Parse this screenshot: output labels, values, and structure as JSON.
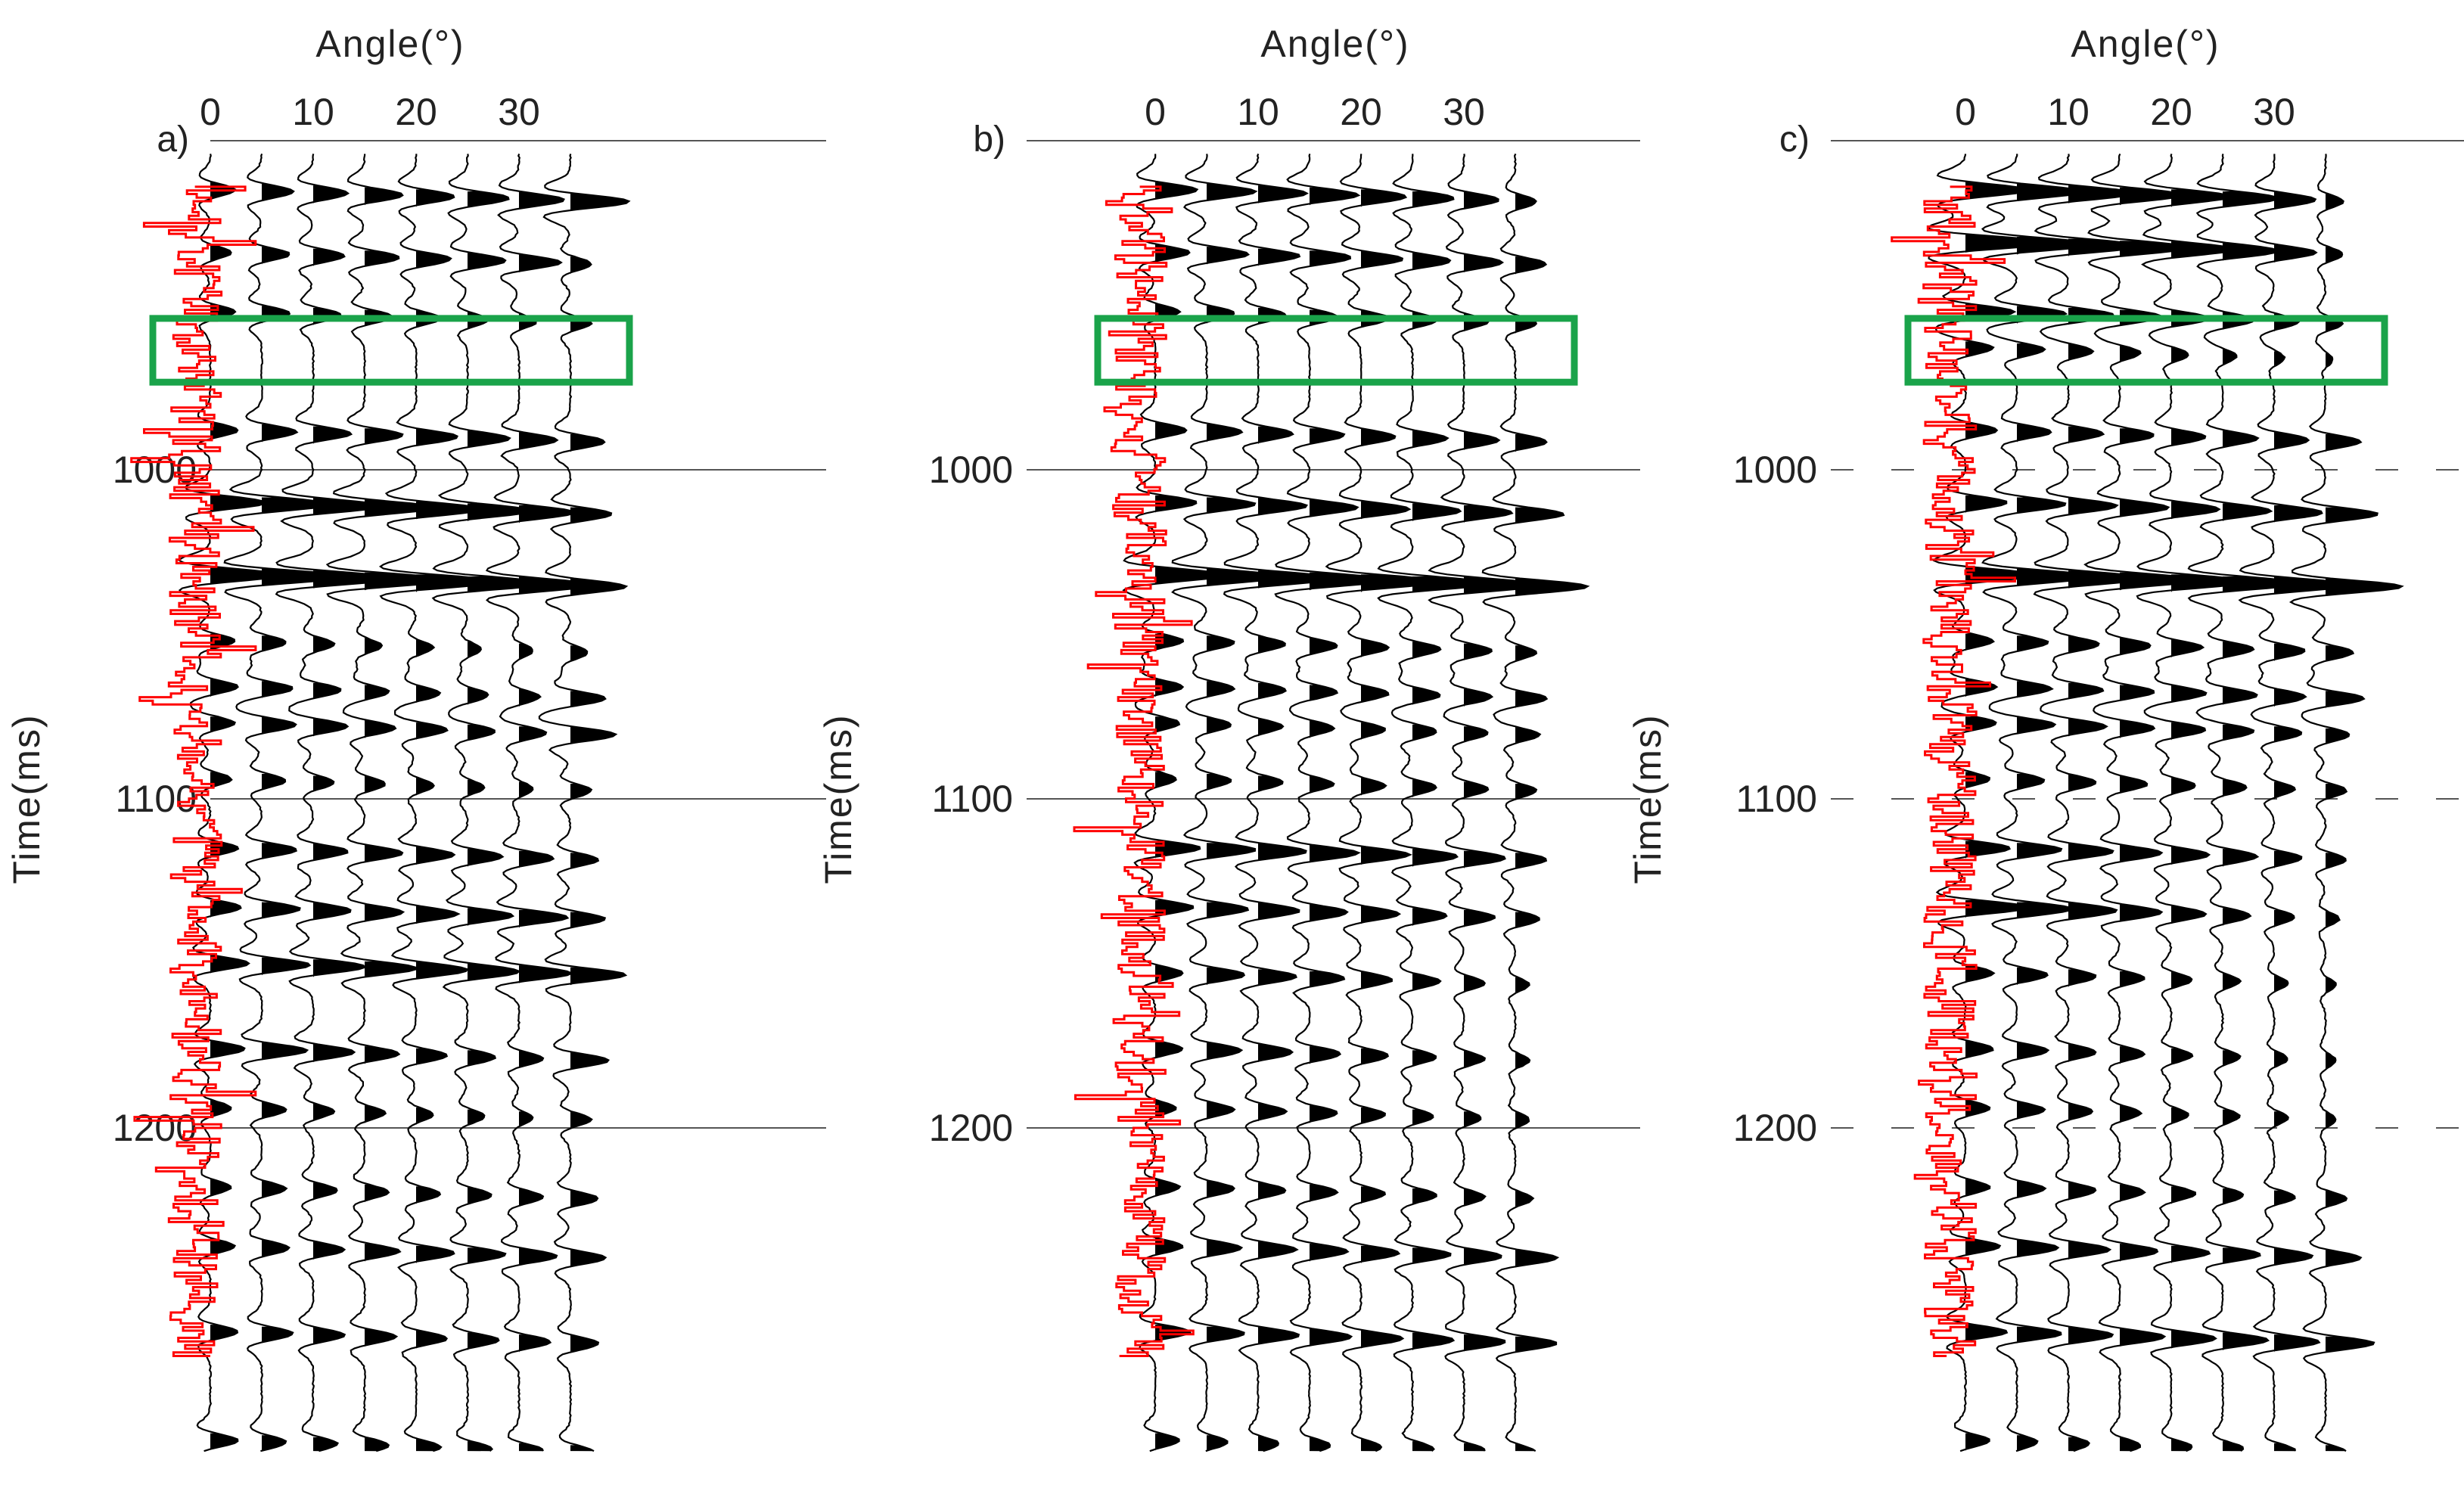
{
  "figure": {
    "colors": {
      "trace": "#000000",
      "fill": "#000000",
      "log": "#ff0000",
      "box": "#1aa34a",
      "grid": "#555555"
    }
  },
  "chart_data": [
    {
      "type": "seismic-wiggle-gather",
      "panel_label": "a)",
      "title": "Angle(°)",
      "xlabel": "Angle(°)",
      "ylabel": "Time(ms)",
      "x_ticks": [
        "0",
        "10",
        "20",
        "30"
      ],
      "y_ticks": [
        "1000",
        "1100",
        "1200"
      ],
      "y_tick_values": [
        1000,
        1100,
        1200
      ],
      "ylim": [
        900,
        1300
      ],
      "trace_angles": [
        0,
        5,
        10,
        15,
        20,
        25,
        30,
        35
      ],
      "gridline_style": "solid",
      "highlight_box": {
        "time_range": [
          954,
          972
        ],
        "angle_range": [
          -5,
          40
        ]
      },
      "events": [
        {
          "t": 915,
          "amp": [
            0.35,
            0.45,
            0.5,
            0.55,
            0.55,
            0.6,
            0.65,
            0.85
          ]
        },
        {
          "t": 934,
          "amp": [
            0.3,
            0.4,
            0.45,
            0.5,
            0.5,
            0.55,
            0.6,
            0.3
          ]
        },
        {
          "t": 952,
          "amp": [
            0.35,
            0.4,
            0.4,
            0.4,
            0.35,
            0.3,
            0.25,
            0.3
          ]
        },
        {
          "t": 988,
          "amp": [
            0.4,
            0.5,
            0.55,
            0.55,
            0.6,
            0.6,
            0.55,
            0.5
          ]
        },
        {
          "t": 1010,
          "amp": [
            0.8,
            1.0,
            1.0,
            1.0,
            0.95,
            0.9,
            0.8,
            0.6
          ]
        },
        {
          "t": 1032,
          "amp": [
            1.0,
            1.2,
            1.2,
            1.2,
            1.15,
            1.1,
            1.05,
            0.8
          ]
        },
        {
          "t": 1052,
          "amp": [
            0.35,
            0.35,
            0.3,
            0.25,
            0.25,
            0.2,
            0.2,
            0.25
          ]
        },
        {
          "t": 1066,
          "amp": [
            0.4,
            0.45,
            0.4,
            0.35,
            0.35,
            0.3,
            0.3,
            0.5
          ]
        },
        {
          "t": 1077,
          "amp": [
            0.35,
            0.5,
            0.5,
            0.45,
            0.45,
            0.4,
            0.4,
            0.65
          ]
        },
        {
          "t": 1094,
          "amp": [
            0.3,
            0.35,
            0.3,
            0.3,
            0.25,
            0.25,
            0.2,
            0.3
          ]
        },
        {
          "t": 1115,
          "amp": [
            0.4,
            0.5,
            0.5,
            0.55,
            0.55,
            0.5,
            0.5,
            0.4
          ]
        },
        {
          "t": 1133,
          "amp": [
            0.45,
            0.55,
            0.55,
            0.55,
            0.6,
            0.65,
            0.7,
            0.5
          ]
        },
        {
          "t": 1150,
          "amp": [
            0.55,
            0.7,
            0.75,
            0.75,
            0.75,
            0.75,
            0.75,
            0.8
          ]
        },
        {
          "t": 1176,
          "amp": [
            0.5,
            0.65,
            0.6,
            0.5,
            0.45,
            0.4,
            0.35,
            0.55
          ]
        },
        {
          "t": 1194,
          "amp": [
            0.3,
            0.35,
            0.3,
            0.3,
            0.25,
            0.25,
            0.2,
            0.3
          ]
        },
        {
          "t": 1218,
          "amp": [
            0.3,
            0.35,
            0.35,
            0.35,
            0.35,
            0.35,
            0.35,
            0.4
          ]
        },
        {
          "t": 1236,
          "amp": [
            0.35,
            0.4,
            0.45,
            0.5,
            0.55,
            0.55,
            0.55,
            0.5
          ]
        },
        {
          "t": 1262,
          "amp": [
            0.4,
            0.45,
            0.45,
            0.45,
            0.45,
            0.45,
            0.45,
            0.4
          ]
        },
        {
          "t": 1295,
          "amp": [
            0.4,
            0.35,
            0.35,
            0.35,
            0.35,
            0.35,
            0.35,
            0.35
          ]
        }
      ]
    },
    {
      "type": "seismic-wiggle-gather",
      "panel_label": "b)",
      "title": "Angle(°)",
      "xlabel": "Angle(°)",
      "ylabel": "Time(ms)",
      "x_ticks": [
        "0",
        "10",
        "20",
        "30"
      ],
      "y_ticks": [
        "1000",
        "1100",
        "1200"
      ],
      "y_tick_values": [
        1000,
        1100,
        1200
      ],
      "ylim": [
        900,
        1300
      ],
      "trace_angles": [
        0,
        5,
        10,
        15,
        20,
        25,
        30,
        35
      ],
      "gridline_style": "solid",
      "highlight_box": {
        "time_range": [
          954,
          972
        ],
        "angle_range": [
          -5,
          40
        ]
      },
      "events": [
        {
          "t": 915,
          "amp": [
            0.6,
            0.7,
            0.7,
            0.7,
            0.65,
            0.6,
            0.5,
            0.3
          ]
        },
        {
          "t": 934,
          "amp": [
            0.5,
            0.6,
            0.6,
            0.6,
            0.6,
            0.55,
            0.55,
            0.45
          ]
        },
        {
          "t": 952,
          "amp": [
            0.35,
            0.4,
            0.4,
            0.4,
            0.4,
            0.35,
            0.35,
            0.3
          ]
        },
        {
          "t": 988,
          "amp": [
            0.45,
            0.5,
            0.5,
            0.5,
            0.5,
            0.5,
            0.5,
            0.45
          ]
        },
        {
          "t": 1010,
          "amp": [
            0.6,
            0.7,
            0.7,
            0.7,
            0.7,
            0.7,
            0.7,
            0.7
          ]
        },
        {
          "t": 1032,
          "amp": [
            1.0,
            1.1,
            1.1,
            1.1,
            1.1,
            1.1,
            1.1,
            1.05
          ]
        },
        {
          "t": 1052,
          "amp": [
            0.4,
            0.4,
            0.4,
            0.4,
            0.4,
            0.4,
            0.4,
            0.3
          ]
        },
        {
          "t": 1066,
          "amp": [
            0.4,
            0.4,
            0.4,
            0.4,
            0.4,
            0.4,
            0.4,
            0.45
          ]
        },
        {
          "t": 1077,
          "amp": [
            0.35,
            0.35,
            0.35,
            0.35,
            0.35,
            0.35,
            0.35,
            0.35
          ]
        },
        {
          "t": 1094,
          "amp": [
            0.3,
            0.35,
            0.35,
            0.35,
            0.35,
            0.35,
            0.35,
            0.3
          ]
        },
        {
          "t": 1115,
          "amp": [
            0.65,
            0.7,
            0.7,
            0.7,
            0.7,
            0.65,
            0.6,
            0.45
          ]
        },
        {
          "t": 1133,
          "amp": [
            0.55,
            0.6,
            0.6,
            0.55,
            0.55,
            0.5,
            0.45,
            0.35
          ]
        },
        {
          "t": 1153,
          "amp": [
            0.4,
            0.55,
            0.55,
            0.5,
            0.45,
            0.4,
            0.3,
            0.2
          ]
        },
        {
          "t": 1176,
          "amp": [
            0.4,
            0.5,
            0.5,
            0.45,
            0.4,
            0.35,
            0.3,
            0.2
          ]
        },
        {
          "t": 1194,
          "amp": [
            0.3,
            0.4,
            0.4,
            0.4,
            0.35,
            0.3,
            0.25,
            0.2
          ]
        },
        {
          "t": 1218,
          "amp": [
            0.35,
            0.4,
            0.4,
            0.4,
            0.35,
            0.35,
            0.3,
            0.25
          ]
        },
        {
          "t": 1236,
          "amp": [
            0.4,
            0.5,
            0.55,
            0.55,
            0.55,
            0.55,
            0.55,
            0.6
          ]
        },
        {
          "t": 1262,
          "amp": [
            0.5,
            0.55,
            0.6,
            0.6,
            0.6,
            0.6,
            0.6,
            0.6
          ]
        },
        {
          "t": 1295,
          "amp": [
            0.35,
            0.3,
            0.3,
            0.3,
            0.3,
            0.3,
            0.3,
            0.3
          ]
        }
      ]
    },
    {
      "type": "seismic-wiggle-gather",
      "panel_label": "c)",
      "title": "Angle(°)",
      "xlabel": "Angle(°)",
      "ylabel": "Time(ms)",
      "x_ticks": [
        "0",
        "10",
        "20",
        "30"
      ],
      "y_ticks": [
        "1000",
        "1100",
        "1200"
      ],
      "y_tick_values": [
        1000,
        1100,
        1200
      ],
      "ylim": [
        900,
        1300
      ],
      "trace_angles": [
        0,
        5,
        10,
        15,
        20,
        25,
        30,
        35
      ],
      "gridline_style": "dashed",
      "highlight_box": {
        "time_range": [
          954,
          972
        ],
        "angle_range": [
          -5,
          40
        ]
      },
      "events": [
        {
          "t": 915,
          "amp": [
            0.9,
            0.95,
            0.95,
            0.9,
            0.85,
            0.8,
            0.6,
            0.25
          ]
        },
        {
          "t": 931,
          "amp": [
            1.2,
            1.1,
            1.05,
            1.0,
            0.9,
            0.8,
            0.6,
            0.25
          ]
        },
        {
          "t": 952,
          "amp": [
            0.7,
            0.7,
            0.65,
            0.6,
            0.55,
            0.45,
            0.35,
            0.25
          ]
        },
        {
          "t": 963,
          "amp": [
            0.4,
            0.4,
            0.35,
            0.3,
            0.25,
            0.2,
            0.15,
            0.1
          ]
        },
        {
          "t": 988,
          "amp": [
            0.45,
            0.5,
            0.5,
            0.5,
            0.5,
            0.5,
            0.5,
            0.5
          ]
        },
        {
          "t": 1010,
          "amp": [
            0.6,
            0.7,
            0.7,
            0.7,
            0.7,
            0.7,
            0.7,
            0.75
          ]
        },
        {
          "t": 1032,
          "amp": [
            1.0,
            1.1,
            1.1,
            1.1,
            1.1,
            1.1,
            1.1,
            1.1
          ]
        },
        {
          "t": 1052,
          "amp": [
            0.4,
            0.45,
            0.45,
            0.45,
            0.45,
            0.45,
            0.45,
            0.4
          ]
        },
        {
          "t": 1066,
          "amp": [
            0.45,
            0.5,
            0.5,
            0.5,
            0.5,
            0.5,
            0.45,
            0.55
          ]
        },
        {
          "t": 1077,
          "amp": [
            0.45,
            0.55,
            0.55,
            0.5,
            0.5,
            0.45,
            0.4,
            0.35
          ]
        },
        {
          "t": 1094,
          "amp": [
            0.35,
            0.4,
            0.4,
            0.4,
            0.35,
            0.35,
            0.3,
            0.3
          ]
        },
        {
          "t": 1115,
          "amp": [
            0.65,
            0.65,
            0.65,
            0.6,
            0.55,
            0.5,
            0.4,
            0.3
          ]
        },
        {
          "t": 1133,
          "amp": [
            0.9,
            0.8,
            0.7,
            0.6,
            0.5,
            0.4,
            0.3,
            0.2
          ]
        },
        {
          "t": 1153,
          "amp": [
            0.4,
            0.45,
            0.4,
            0.35,
            0.3,
            0.25,
            0.2,
            0.15
          ]
        },
        {
          "t": 1176,
          "amp": [
            0.4,
            0.45,
            0.4,
            0.35,
            0.3,
            0.25,
            0.2,
            0.15
          ]
        },
        {
          "t": 1194,
          "amp": [
            0.35,
            0.4,
            0.35,
            0.3,
            0.25,
            0.25,
            0.2,
            0.15
          ]
        },
        {
          "t": 1218,
          "amp": [
            0.35,
            0.4,
            0.4,
            0.35,
            0.35,
            0.3,
            0.3,
            0.3
          ]
        },
        {
          "t": 1236,
          "amp": [
            0.5,
            0.6,
            0.6,
            0.55,
            0.55,
            0.55,
            0.55,
            0.5
          ]
        },
        {
          "t": 1262,
          "amp": [
            0.6,
            0.65,
            0.65,
            0.65,
            0.65,
            0.65,
            0.65,
            0.7
          ]
        },
        {
          "t": 1295,
          "amp": [
            0.35,
            0.3,
            0.3,
            0.3,
            0.3,
            0.3,
            0.3,
            0.3
          ]
        }
      ]
    }
  ]
}
